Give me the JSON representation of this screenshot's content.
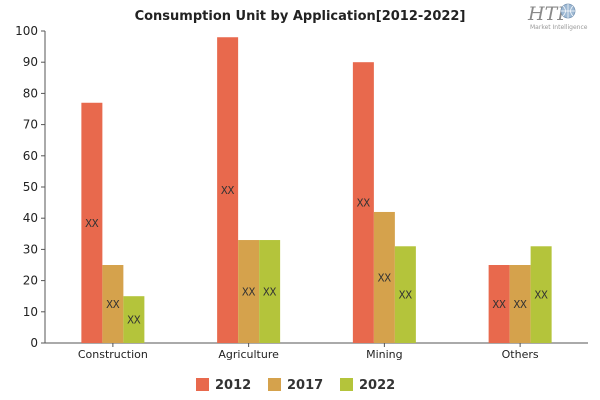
{
  "chart_data": {
    "type": "bar",
    "title": "Consumption Unit by  Application[2012-2022]",
    "categories": [
      "Construction",
      "Agriculture",
      "Mining",
      "Others"
    ],
    "series": [
      {
        "name": "2012",
        "color": "#e8694d",
        "values": [
          77,
          98,
          90,
          25
        ]
      },
      {
        "name": "2017",
        "color": "#d5a24c",
        "values": [
          25,
          33,
          42,
          25
        ]
      },
      {
        "name": "2022",
        "color": "#b4c43b",
        "values": [
          15,
          33,
          31,
          31
        ]
      }
    ],
    "data_label": "XX",
    "ylim": [
      0,
      100
    ],
    "yticks": [
      0,
      10,
      20,
      30,
      40,
      50,
      60,
      70,
      80,
      90,
      100
    ],
    "grid": false,
    "legend": "bottom"
  },
  "logo": {
    "big": "HTF",
    "small": "Market Intelligence"
  }
}
